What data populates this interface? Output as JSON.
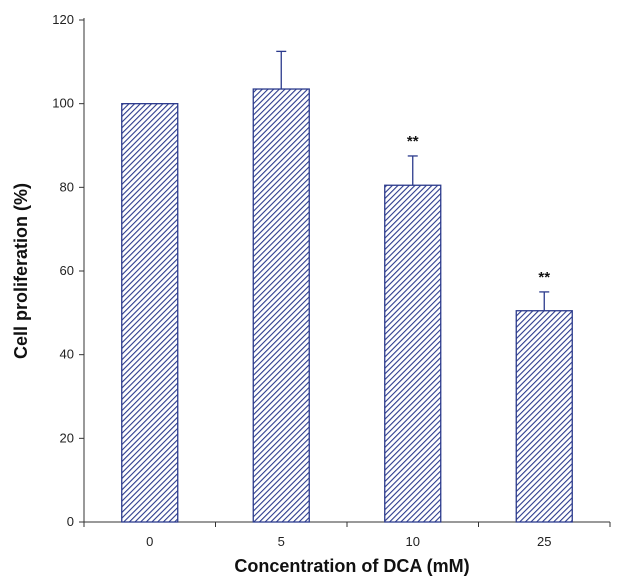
{
  "chart_data": {
    "type": "bar",
    "title": "",
    "xlabel": "Concentration of DCA (mM)",
    "ylabel": "Cell proliferation (%)",
    "categories": [
      "0",
      "5",
      "10",
      "25"
    ],
    "values": [
      100,
      103.5,
      80.5,
      50.5
    ],
    "error_upper": [
      0,
      9,
      7,
      4.5
    ],
    "annotations": [
      "",
      "",
      "**",
      "**"
    ],
    "ylim": [
      0,
      120
    ],
    "yticks": [
      0,
      20,
      40,
      60,
      80,
      100,
      120
    ],
    "grid": false,
    "bar_color": "#2b3a8c",
    "bar_fill": "hatched"
  }
}
